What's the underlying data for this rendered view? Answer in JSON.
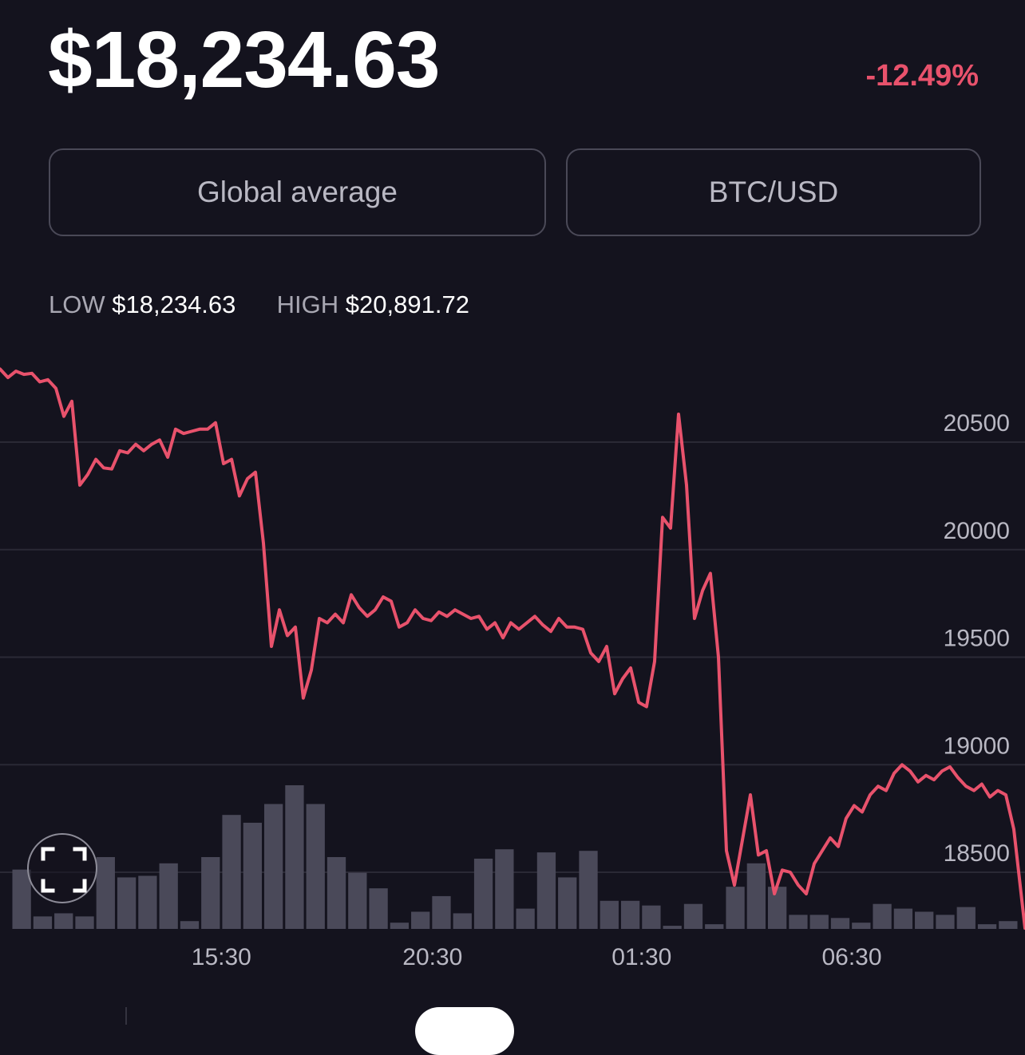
{
  "header": {
    "price": "$18,234.63",
    "change": "-12.49%"
  },
  "selectors": {
    "source_label": "Global average",
    "pair_label": "BTC/USD"
  },
  "range": {
    "low_label": "LOW",
    "low_value": "$18,234.63",
    "high_label": "HIGH",
    "high_value": "$20,891.72"
  },
  "colors": {
    "background": "#14131e",
    "line": "#e8526c",
    "negative": "#e8526c",
    "volume_bars": "#4a4959",
    "grid": "#2a2935"
  },
  "icons": {
    "expand": "fullscreen-corners-icon"
  },
  "chart_data": {
    "type": "line",
    "ylim": [
      18200,
      21000
    ],
    "y_ticks": [
      "20500",
      "20000",
      "19500",
      "19000",
      "18500"
    ],
    "y_tick_values": [
      20500,
      20000,
      19500,
      19000,
      18500
    ],
    "x_ticks": [
      "15:30",
      "20:30",
      "01:30",
      "06:30"
    ],
    "x_tick_positions": [
      0.216,
      0.422,
      0.626,
      0.831
    ],
    "grid": true,
    "series": [
      {
        "x": [
          0,
          0.0078,
          0.0156,
          0.0234,
          0.0311,
          0.0389,
          0.0467,
          0.0545,
          0.0623,
          0.0701,
          0.0779,
          0.0857,
          0.0935,
          0.1012,
          0.109,
          0.1168,
          0.1246,
          0.1324,
          0.1402,
          0.148,
          0.1558,
          0.1636,
          0.1713,
          0.1791,
          0.1869,
          0.1947,
          0.2025,
          0.2103,
          0.2181,
          0.2259,
          0.2336,
          0.2414,
          0.2492,
          0.257,
          0.2648,
          0.2726,
          0.2804,
          0.2882,
          0.2959,
          0.3037,
          0.3115,
          0.3193,
          0.3271,
          0.3349,
          0.3427,
          0.3505,
          0.3583,
          0.366,
          0.3738,
          0.3816,
          0.3894,
          0.3972,
          0.405,
          0.4128,
          0.4206,
          0.4283,
          0.4361,
          0.4439,
          0.4517,
          0.4595,
          0.4673,
          0.4751,
          0.4829,
          0.4907,
          0.4984,
          0.5062,
          0.514,
          0.5218,
          0.5296,
          0.5374,
          0.5452,
          0.553,
          0.5607,
          0.5685,
          0.5763,
          0.5841,
          0.5919,
          0.5997,
          0.6075,
          0.6153,
          0.6231,
          0.6308,
          0.6386,
          0.6464,
          0.6542,
          0.662,
          0.6698,
          0.6776,
          0.6854,
          0.6931,
          0.7009,
          0.7087,
          0.7165,
          0.7243,
          0.7321,
          0.7399,
          0.7477,
          0.7555,
          0.7632,
          0.771,
          0.7788,
          0.7866,
          0.7944,
          0.8022,
          0.81,
          0.8178,
          0.8255,
          0.8333,
          0.8411,
          0.8489,
          0.8567,
          0.8645,
          0.8723,
          0.8801,
          0.8879,
          0.8956,
          0.9034,
          0.9112,
          0.919,
          0.9268,
          0.9346,
          0.9424,
          0.9502,
          0.9579,
          0.9657,
          0.9735,
          0.9813,
          0.9891,
          1.0
        ],
        "values": [
          20840,
          20800,
          20830,
          20815,
          20820,
          20780,
          20790,
          20750,
          20620,
          20690,
          20300,
          20350,
          20420,
          20380,
          20375,
          20460,
          20450,
          20490,
          20460,
          20490,
          20510,
          20430,
          20560,
          20540,
          20550,
          20560,
          20560,
          20590,
          20400,
          20420,
          20250,
          20330,
          20360,
          20030,
          19550,
          19720,
          19600,
          19640,
          19310,
          19440,
          19680,
          19660,
          19700,
          19660,
          19790,
          19730,
          19690,
          19720,
          19780,
          19760,
          19640,
          19660,
          19720,
          19680,
          19670,
          19710,
          19690,
          19720,
          19700,
          19680,
          19690,
          19630,
          19660,
          19590,
          19660,
          19630,
          19660,
          19690,
          19650,
          19620,
          19680,
          19640,
          19640,
          19630,
          19520,
          19480,
          19550,
          19330,
          19400,
          19450,
          19290,
          19270,
          19480,
          20150,
          20100,
          20630,
          20300,
          19680,
          19810,
          19890,
          19500,
          18600,
          18440,
          18650,
          18860,
          18580,
          18600,
          18400,
          18510,
          18500,
          18440,
          18400,
          18540,
          18600,
          18660,
          18620,
          18750,
          18810,
          18780,
          18860,
          18900,
          18880,
          18960,
          19000,
          18970,
          18920,
          18950,
          18930,
          18970,
          18990,
          18940,
          18900,
          18880,
          18910,
          18850,
          18880,
          18860,
          18700,
          18240
        ]
      }
    ],
    "volume": {
      "values": [
        38,
        8,
        10,
        8,
        46,
        33,
        34,
        42,
        5,
        46,
        73,
        68,
        80,
        92,
        80,
        46,
        36,
        26,
        4,
        11,
        21,
        10,
        45,
        51,
        13,
        49,
        33,
        50,
        18,
        18,
        15,
        2,
        16,
        3,
        27,
        42,
        27,
        9,
        9,
        7,
        4,
        16,
        13,
        11,
        9,
        14,
        3,
        5
      ]
    }
  }
}
